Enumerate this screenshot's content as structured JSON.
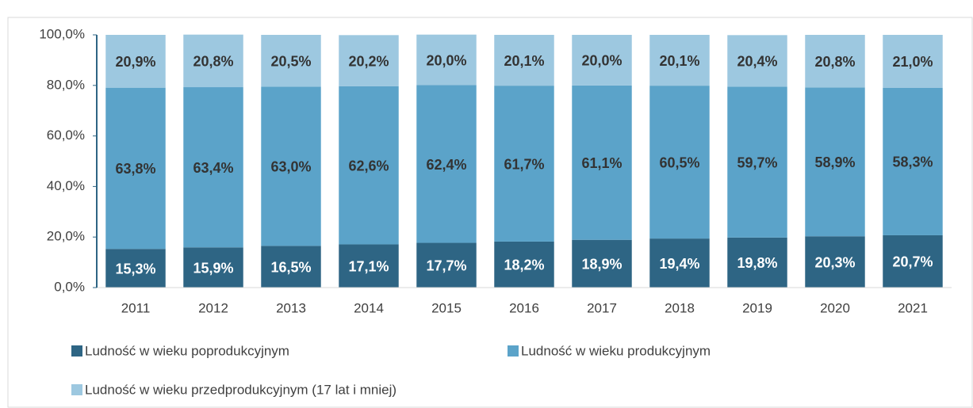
{
  "chart_data": {
    "type": "stacked_bar",
    "categories": [
      "2011",
      "2012",
      "2013",
      "2014",
      "2015",
      "2016",
      "2017",
      "2018",
      "2019",
      "2020",
      "2021"
    ],
    "series": [
      {
        "name": "Ludność w wieku poprodukcyjnym",
        "color": "#2e6584",
        "values": [
          15.3,
          15.9,
          16.5,
          17.1,
          17.7,
          18.2,
          18.9,
          19.4,
          19.8,
          20.3,
          20.7
        ],
        "value_labels": [
          "15,3%",
          "15,9%",
          "16,5%",
          "17,1%",
          "17,7%",
          "18,2%",
          "18,9%",
          "19,4%",
          "19,8%",
          "20,3%",
          "20,7%"
        ]
      },
      {
        "name": "Ludność w wieku produkcyjnym",
        "color": "#5ba3c9",
        "values": [
          63.8,
          63.4,
          63.0,
          62.6,
          62.4,
          61.7,
          61.1,
          60.5,
          59.7,
          58.9,
          58.3
        ],
        "value_labels": [
          "63,8%",
          "63,4%",
          "63,0%",
          "62,6%",
          "62,4%",
          "61,7%",
          "61,1%",
          "60,5%",
          "59,7%",
          "58,9%",
          "58,3%"
        ]
      },
      {
        "name": "Ludność w wieku przedprodukcyjnym (17 lat i  mniej)",
        "color": "#9dc8e0",
        "values": [
          20.9,
          20.8,
          20.5,
          20.2,
          20.0,
          20.1,
          20.0,
          20.1,
          20.4,
          20.8,
          21.0
        ],
        "value_labels": [
          "20,9%",
          "20,8%",
          "20,5%",
          "20,2%",
          "20,0%",
          "20,1%",
          "20,0%",
          "20,1%",
          "20,4%",
          "20,8%",
          "21,0%"
        ]
      }
    ],
    "ylim": [
      0,
      100
    ],
    "yticks": [
      {
        "value": 0,
        "label": "0,0%"
      },
      {
        "value": 20,
        "label": "20,0%"
      },
      {
        "value": 40,
        "label": "40,0%"
      },
      {
        "value": 60,
        "label": "60,0%"
      },
      {
        "value": 80,
        "label": "80,0%"
      },
      {
        "value": 100,
        "label": "100,0%"
      }
    ],
    "grid": false
  }
}
